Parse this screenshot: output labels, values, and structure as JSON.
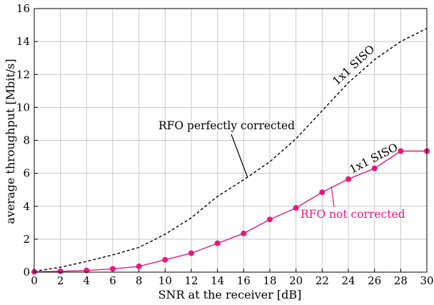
{
  "chart_data": {
    "type": "line",
    "xlabel": "SNR at the receiver [dB]",
    "ylabel": "average throughput [Mbit/s]",
    "xlim": [
      0,
      30
    ],
    "ylim": [
      0,
      16
    ],
    "x_ticks": [
      0,
      2,
      4,
      6,
      8,
      10,
      12,
      14,
      16,
      18,
      20,
      22,
      24,
      26,
      28,
      30
    ],
    "y_ticks": [
      0,
      2,
      4,
      6,
      8,
      10,
      12,
      14,
      16
    ],
    "grid": true,
    "series": [
      {
        "name": "RFO perfectly corrected",
        "style": "dashed",
        "color": "#000000",
        "x": [
          0,
          2,
          4,
          6,
          8,
          10,
          12,
          14,
          16,
          18,
          20,
          22,
          24,
          26,
          28,
          30
        ],
        "values": [
          0.05,
          0.3,
          0.65,
          1.05,
          1.5,
          2.3,
          3.3,
          4.6,
          5.6,
          6.7,
          8.1,
          9.8,
          11.5,
          12.9,
          14.0,
          14.8
        ]
      },
      {
        "name": "RFO not corrected",
        "style": "solid-markers",
        "color": "#e6197f",
        "x": [
          0,
          2,
          4,
          6,
          8,
          10,
          12,
          14,
          16,
          18,
          20,
          22,
          24,
          26,
          28,
          30
        ],
        "values": [
          0.02,
          0.05,
          0.1,
          0.2,
          0.35,
          0.75,
          1.15,
          1.75,
          2.35,
          3.2,
          3.9,
          4.85,
          5.65,
          6.3,
          7.35,
          7.35
        ]
      }
    ],
    "annotations": [
      {
        "text": "1x1 SISO",
        "series": 0
      },
      {
        "text": "RFO perfectly corrected",
        "series": 0
      },
      {
        "text": "1x1 SISO",
        "series": 1
      },
      {
        "text": "RFO not corrected",
        "series": 1
      }
    ]
  }
}
